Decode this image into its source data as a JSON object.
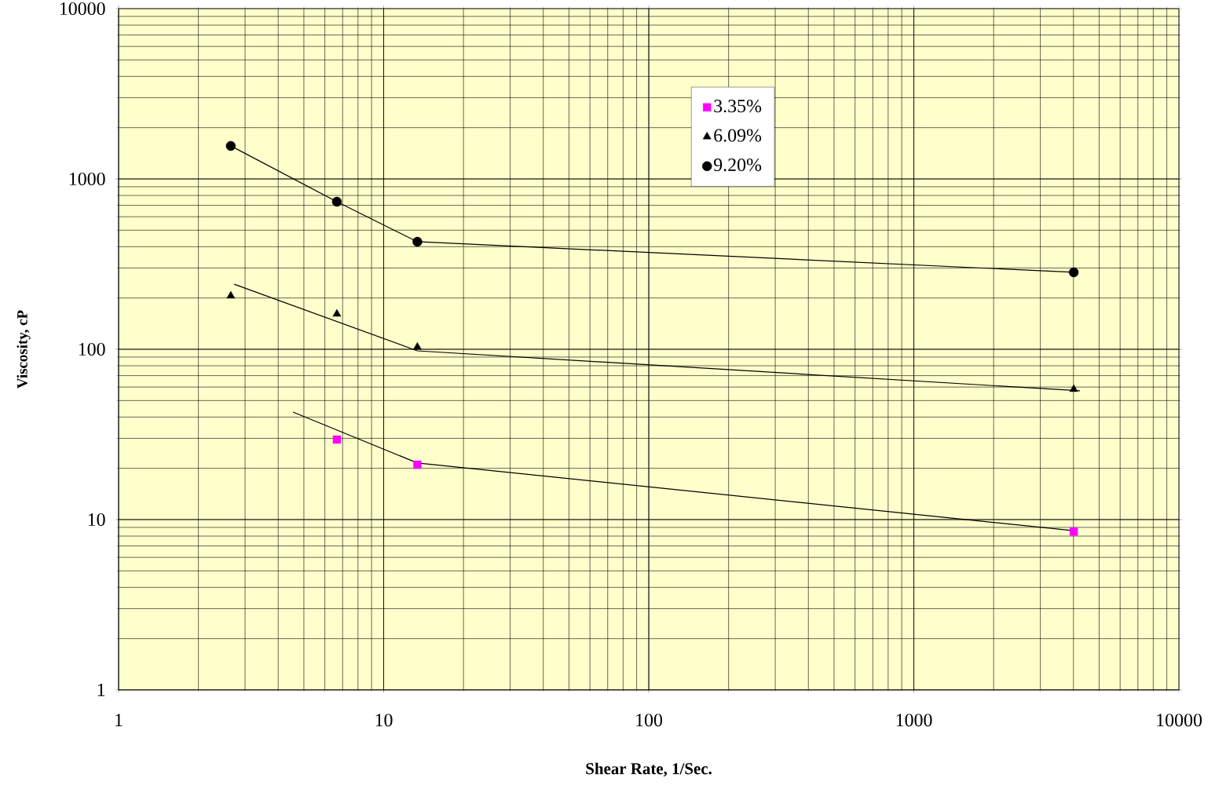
{
  "chart_data": {
    "type": "scatter",
    "xlabel": "Shear Rate, 1/Sec.",
    "ylabel": "Viscosity, cP",
    "log": "xy",
    "grid": true,
    "legend": "top",
    "xlim": [
      1,
      10000
    ],
    "ylim": [
      1,
      10000
    ],
    "xticks": [
      1,
      10,
      100,
      1000,
      10000
    ],
    "yticks": [
      1,
      10,
      100,
      1000,
      10000
    ],
    "series": [
      {
        "name": "3.35%",
        "marker": "square",
        "color": "#ff00ff",
        "x": [
          6.66,
          13.4,
          4010
        ],
        "values": [
          29.5,
          21.0,
          8.5
        ]
      },
      {
        "name": "6.09%",
        "marker": "triangle",
        "color": "#000000",
        "x": [
          2.65,
          6.66,
          13.4,
          4010
        ],
        "values": [
          206,
          161,
          103,
          58.2
        ]
      },
      {
        "name": "9.20%",
        "marker": "circle",
        "color": "#000000",
        "x": [
          2.65,
          6.66,
          13.4,
          4010
        ],
        "values": [
          1563,
          735,
          428,
          283
        ]
      },
      {
        "type": "line",
        "marker": "none",
        "line_style": "solid",
        "color": "#000000",
        "x": [
          4.55,
          13.4,
          4010
        ],
        "values": [
          42.8,
          21.5,
          8.6
        ]
      },
      {
        "type": "line",
        "marker": "none",
        "line_style": "solid",
        "color": "#000000",
        "x": [
          2.73,
          13.4,
          4234
        ],
        "values": [
          241,
          97.9,
          57.0
        ]
      },
      {
        "type": "line",
        "marker": "none",
        "line_style": "solid",
        "color": "#000000",
        "x": [
          2.65,
          6.66,
          13.4,
          4010
        ],
        "values": [
          1563,
          735,
          428,
          283
        ]
      }
    ]
  }
}
